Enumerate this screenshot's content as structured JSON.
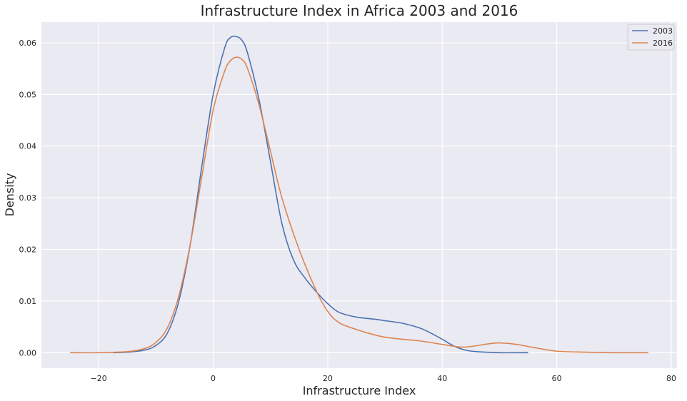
{
  "chart_data": {
    "type": "line",
    "title": "Infrastructure Index in Africa 2003 and 2016",
    "xlabel": "Infrastructure Index",
    "ylabel": "Density",
    "xlim": [
      -30,
      81
    ],
    "ylim": [
      -0.003,
      0.064
    ],
    "xticks": [
      -20,
      0,
      20,
      40,
      60,
      80
    ],
    "xtick_labels": [
      "−20",
      "0",
      "20",
      "40",
      "60",
      "80"
    ],
    "yticks": [
      0.0,
      0.01,
      0.02,
      0.03,
      0.04,
      0.05,
      0.06
    ],
    "ytick_labels": [
      "0.00",
      "0.01",
      "0.02",
      "0.03",
      "0.04",
      "0.05",
      "0.06"
    ],
    "grid": true,
    "legend_position": "top-right",
    "background": "#eaeaf2",
    "series": [
      {
        "name": "2003",
        "color": "#4c72b0",
        "x": [
          -17.5,
          -15,
          -12,
          -10,
          -8,
          -6,
          -4,
          -2,
          0,
          2,
          3,
          4,
          5,
          6,
          8,
          10,
          12,
          14,
          16,
          18,
          20,
          22,
          25,
          28,
          30,
          33,
          36,
          38,
          40,
          42,
          44,
          46,
          50,
          55
        ],
        "y": [
          0.0,
          0.0001,
          0.0005,
          0.0014,
          0.0038,
          0.01,
          0.021,
          0.036,
          0.05,
          0.059,
          0.061,
          0.0612,
          0.0605,
          0.058,
          0.049,
          0.037,
          0.025,
          0.018,
          0.0145,
          0.0118,
          0.0095,
          0.0078,
          0.0069,
          0.0065,
          0.0062,
          0.0057,
          0.0048,
          0.0038,
          0.0026,
          0.0013,
          0.0005,
          0.0002,
          0.0,
          0.0
        ]
      },
      {
        "name": "2016",
        "color": "#dd8452",
        "x": [
          -25,
          -20,
          -15,
          -12,
          -10,
          -8,
          -6,
          -4,
          -2,
          0,
          2,
          3,
          4,
          5,
          6,
          8,
          10,
          12,
          15,
          18,
          20,
          22,
          25,
          28,
          30,
          33,
          36,
          40,
          43,
          45,
          48,
          50,
          53,
          56,
          60,
          65,
          70,
          76
        ],
        "y": [
          0.0,
          0.0,
          0.0002,
          0.0008,
          0.002,
          0.0048,
          0.011,
          0.021,
          0.034,
          0.047,
          0.0545,
          0.0565,
          0.0572,
          0.0568,
          0.055,
          0.048,
          0.039,
          0.03,
          0.02,
          0.012,
          0.008,
          0.0058,
          0.0045,
          0.0035,
          0.003,
          0.0026,
          0.0023,
          0.0016,
          0.0011,
          0.0012,
          0.0017,
          0.0019,
          0.0016,
          0.001,
          0.0003,
          0.0001,
          0.0,
          0.0
        ]
      }
    ]
  }
}
